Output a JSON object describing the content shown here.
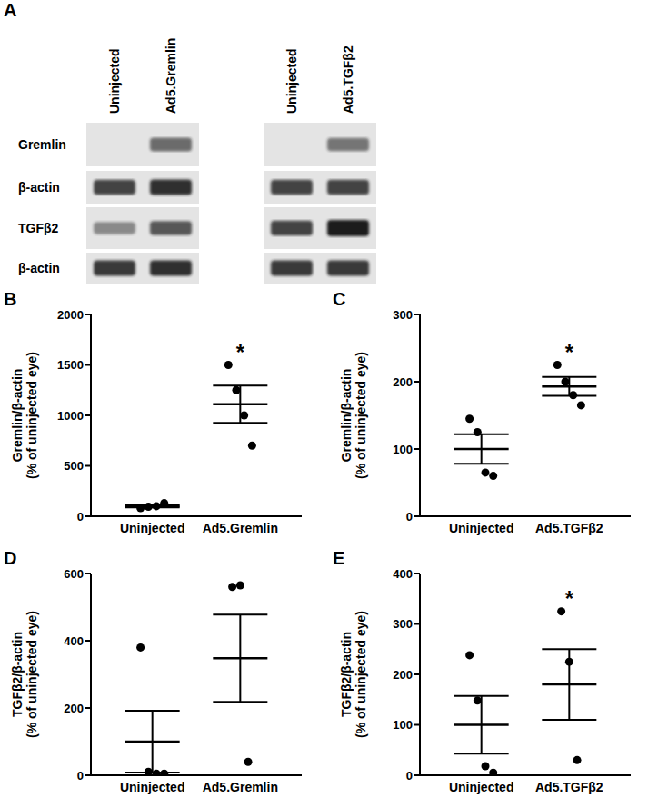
{
  "blot": {
    "panel": "A",
    "lanes": [
      [
        "Uninjected",
        "Ad5.Gremlin"
      ],
      [
        "Uninjected",
        "Ad5.TGFβ2"
      ]
    ],
    "rows": [
      {
        "label": "Gremlin",
        "intensity": [
          [
            0,
            0.6
          ],
          [
            0,
            0.55
          ]
        ]
      },
      {
        "label": "β-actin",
        "intensity": [
          [
            0.8,
            0.9
          ],
          [
            0.8,
            0.8
          ]
        ]
      },
      {
        "label": "TGFβ2",
        "intensity": [
          [
            0.45,
            0.7
          ],
          [
            0.8,
            1.0
          ]
        ]
      },
      {
        "label": "β-actin",
        "intensity": [
          [
            0.85,
            0.9
          ],
          [
            0.85,
            0.85
          ]
        ]
      }
    ]
  },
  "chart_data": [
    {
      "panel": "B",
      "type": "scatter",
      "categories": [
        "Uninjected",
        "Ad5.Gremlin"
      ],
      "ylabel": [
        "Gremlin/β-actin",
        "(% of uninjected eye)"
      ],
      "ylim": [
        0,
        2000
      ],
      "yticks": [
        0,
        500,
        1000,
        1500,
        2000
      ],
      "values": [
        [
          80,
          95,
          100,
          130
        ],
        [
          1500,
          1250,
          1000,
          700
        ]
      ],
      "mean": [
        100,
        1110
      ],
      "error": [
        12,
        185
      ],
      "annotations": [
        {
          "text": "*",
          "category": "Ad5.Gremlin"
        }
      ],
      "color": "#000000"
    },
    {
      "panel": "C",
      "type": "scatter",
      "categories": [
        "Uninjected",
        "Ad5.TGFβ2"
      ],
      "ylabel": [
        "Gremlin/β-actin",
        "(% of uninjected eye)"
      ],
      "ylim": [
        0,
        300
      ],
      "yticks": [
        0,
        100,
        200,
        300
      ],
      "values": [
        [
          145,
          125,
          65,
          60
        ],
        [
          225,
          200,
          180,
          165
        ]
      ],
      "mean": [
        100,
        193
      ],
      "error": [
        22,
        14
      ],
      "annotations": [
        {
          "text": "*",
          "category": "Ad5.TGFβ2"
        }
      ],
      "color": "#000000"
    },
    {
      "panel": "D",
      "type": "scatter",
      "categories": [
        "Uninjected",
        "Ad5.Gremlin"
      ],
      "ylabel": [
        "TGFβ2/β-actin",
        "(% of uninjected eye)"
      ],
      "ylim": [
        0,
        600
      ],
      "yticks": [
        0,
        200,
        400,
        600
      ],
      "values": [
        [
          380,
          10,
          5,
          5
        ],
        [
          560,
          565,
          40
        ]
      ],
      "mean": [
        100,
        348
      ],
      "error": [
        92,
        130
      ],
      "annotations": [],
      "color": "#000000"
    },
    {
      "panel": "E",
      "type": "scatter",
      "categories": [
        "Uninjected",
        "Ad5.TGFβ2"
      ],
      "ylabel": [
        "TGFβ2/β-actin",
        "(% of uninjected eye)"
      ],
      "ylim": [
        0,
        400
      ],
      "yticks": [
        0,
        100,
        200,
        300,
        400
      ],
      "values": [
        [
          238,
          148,
          18,
          5
        ],
        [
          325,
          225,
          30
        ]
      ],
      "mean": [
        100,
        180
      ],
      "error": [
        57,
        70
      ],
      "annotations": [
        {
          "text": "*",
          "category": "Ad5.TGFβ2"
        }
      ],
      "color": "#000000"
    }
  ]
}
